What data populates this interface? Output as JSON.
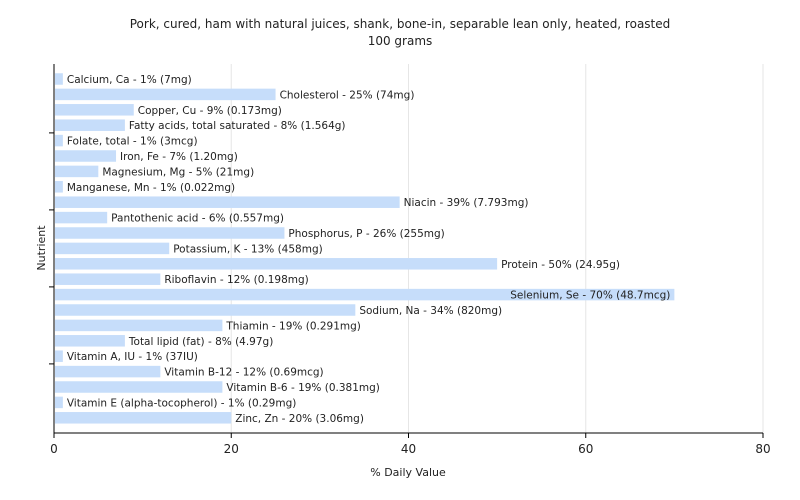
{
  "chart_data": {
    "type": "bar",
    "orientation": "horizontal",
    "title": "Pork, cured, ham with natural juices, shank, bone-in, separable lean only, heated, roasted",
    "subtitle": "100 grams",
    "xlabel": "% Daily Value",
    "ylabel": "Nutrient",
    "xlim": [
      0,
      80
    ],
    "xticks": [
      0,
      20,
      40,
      60,
      80
    ],
    "grid": "vertical",
    "bar_color": "#c6ddfa",
    "categories": [
      "Calcium, Ca",
      "Cholesterol",
      "Copper, Cu",
      "Fatty acids, total saturated",
      "Folate, total",
      "Iron, Fe",
      "Magnesium, Mg",
      "Manganese, Mn",
      "Niacin",
      "Pantothenic acid",
      "Phosphorus, P",
      "Potassium, K",
      "Protein",
      "Riboflavin",
      "Selenium, Se",
      "Sodium, Na",
      "Thiamin",
      "Total lipid (fat)",
      "Vitamin A, IU",
      "Vitamin B-12",
      "Vitamin B-6",
      "Vitamin E (alpha-tocopherol)",
      "Zinc, Zn"
    ],
    "values": [
      1,
      25,
      9,
      8,
      1,
      7,
      5,
      1,
      39,
      6,
      26,
      13,
      50,
      12,
      70,
      34,
      19,
      8,
      1,
      12,
      19,
      1,
      20
    ],
    "labels": [
      "Calcium, Ca - 1% (7mg)",
      "Cholesterol - 25% (74mg)",
      "Copper, Cu - 9% (0.173mg)",
      "Fatty acids, total saturated - 8% (1.564g)",
      "Folate, total - 1% (3mcg)",
      "Iron, Fe - 7% (1.20mg)",
      "Magnesium, Mg - 5% (21mg)",
      "Manganese, Mn - 1% (0.022mg)",
      "Niacin - 39% (7.793mg)",
      "Pantothenic acid - 6% (0.557mg)",
      "Phosphorus, P - 26% (255mg)",
      "Potassium, K - 13% (458mg)",
      "Protein - 50% (24.95g)",
      "Riboflavin - 12% (0.198mg)",
      "Selenium, Se - 70% (48.7mcg)",
      "Sodium, Na - 34% (820mg)",
      "Thiamin - 19% (0.291mg)",
      "Total lipid (fat) - 8% (4.97g)",
      "Vitamin A, IU - 1% (37IU)",
      "Vitamin B-12 - 12% (0.69mcg)",
      "Vitamin B-6 - 19% (0.381mg)",
      "Vitamin E (alpha-tocopherol) - 1% (0.29mg)",
      "Zinc, Zn - 20% (3.06mg)"
    ]
  }
}
